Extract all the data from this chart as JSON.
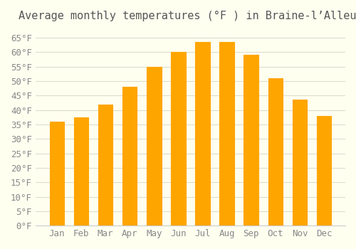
{
  "title": "Average monthly temperatures (°F ) in Braine-l’Alleud",
  "months": [
    "Jan",
    "Feb",
    "Mar",
    "Apr",
    "May",
    "Jun",
    "Jul",
    "Aug",
    "Sep",
    "Oct",
    "Nov",
    "Dec"
  ],
  "values": [
    36,
    37.5,
    42,
    48,
    55,
    60,
    63.5,
    63.5,
    59,
    51,
    43.5,
    38
  ],
  "bar_color": "#FFA500",
  "bar_edge_color": "#FF8C00",
  "background_color": "#FFFFF0",
  "grid_color": "#DDDDCC",
  "ylim": [
    0,
    68
  ],
  "yticks": [
    0,
    5,
    10,
    15,
    20,
    25,
    30,
    35,
    40,
    45,
    50,
    55,
    60,
    65
  ],
  "title_fontsize": 11,
  "tick_fontsize": 9,
  "font_family": "monospace"
}
